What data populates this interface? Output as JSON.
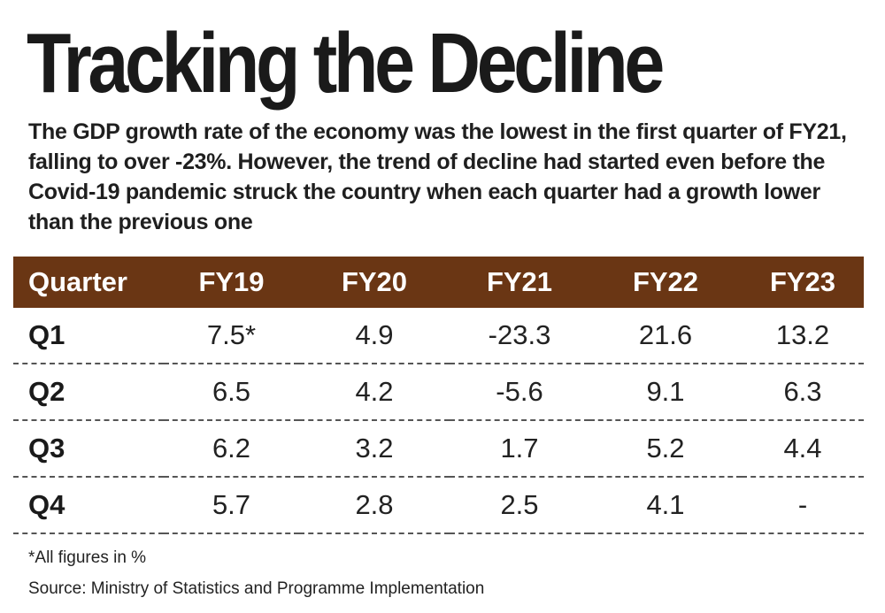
{
  "title": "Tracking the Decline",
  "subtitle": "The GDP growth rate of the economy was the lowest in the first quarter of FY21, falling to over -23%. However, the trend of decline had started even before the Covid-19 pandemic struck the country when each quarter had a growth lower than the previous one",
  "note": "*All figures in %",
  "source": "Source: Ministry of Statistics and Programme Implementation",
  "colors": {
    "header_background": "#6a3614",
    "header_text": "#ffffff"
  },
  "chart_data": {
    "type": "table",
    "title": "Tracking the Decline",
    "columns": [
      "Quarter",
      "FY19",
      "FY20",
      "FY21",
      "FY22",
      "FY23"
    ],
    "rows": [
      {
        "label": "Q1",
        "cells": [
          "7.5*",
          "4.9",
          "-23.3",
          "21.6",
          "13.2"
        ]
      },
      {
        "label": "Q2",
        "cells": [
          "6.5",
          "4.2",
          "-5.6",
          "9.1",
          "6.3"
        ]
      },
      {
        "label": "Q3",
        "cells": [
          "6.2",
          "3.2",
          "1.7",
          "5.2",
          "4.4"
        ]
      },
      {
        "label": "Q4",
        "cells": [
          "5.7",
          "2.8",
          "2.5",
          "4.1",
          "-"
        ]
      }
    ]
  }
}
